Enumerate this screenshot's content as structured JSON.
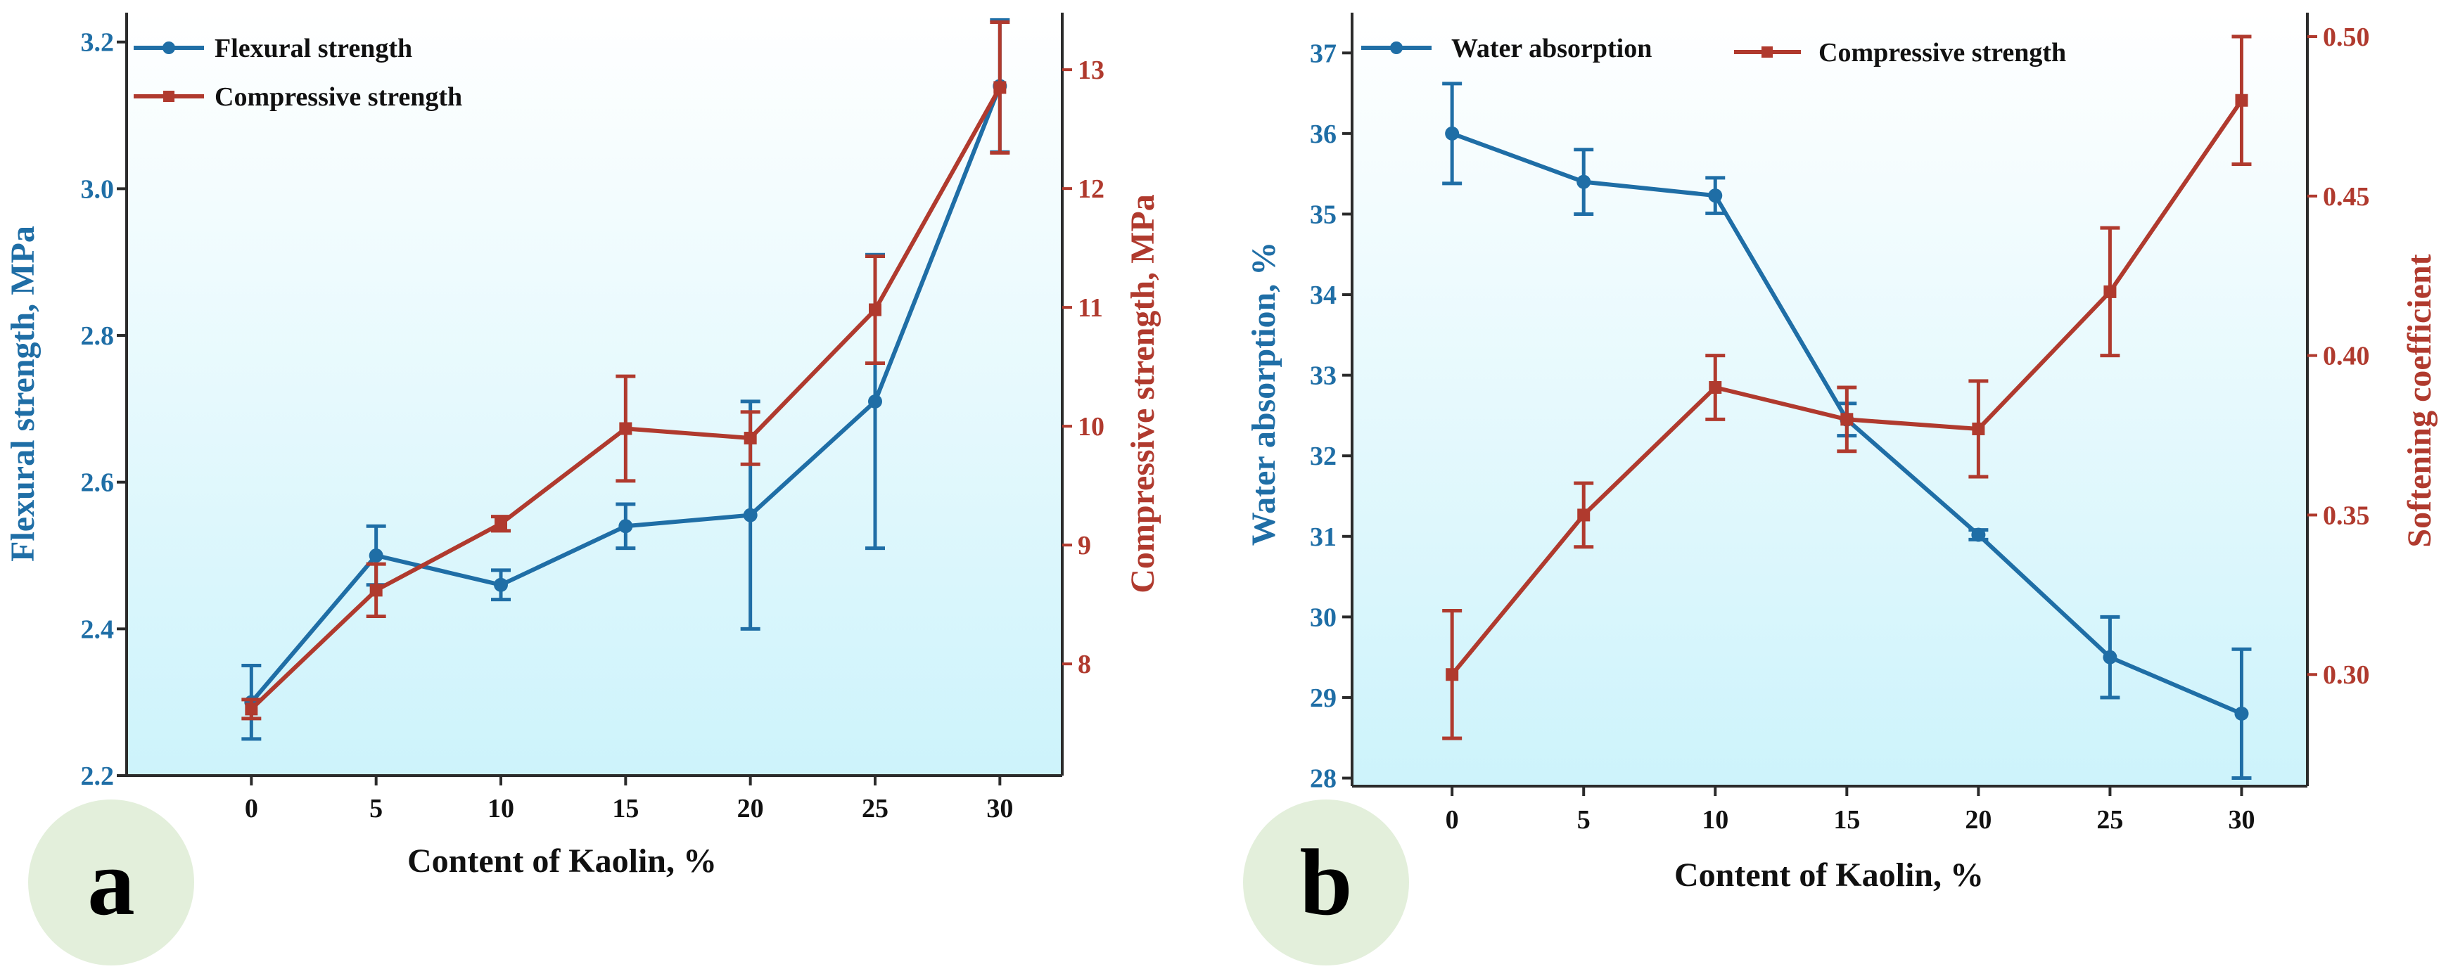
{
  "colors": {
    "blue": "#1f6ea6",
    "red": "#b03a2e",
    "panel_bg_top": "#ffffff",
    "panel_bg_bottom": "#cdf3fb",
    "badge": "#e3efdb",
    "axis": "#2b2b2b"
  },
  "chart_data": [
    {
      "type": "line",
      "panel_label": "a",
      "xlabel": "Content of Kaolin, %",
      "x": [
        0,
        5,
        10,
        15,
        20,
        25,
        30
      ],
      "x_ticks": [
        0,
        5,
        10,
        15,
        20,
        25,
        30
      ],
      "xlim": [
        -5,
        32.5
      ],
      "left_axis": {
        "label": "Flexural strength, MPa",
        "lim": [
          2.2,
          3.24
        ],
        "ticks": [
          2.2,
          2.4,
          2.6,
          2.8,
          3.0,
          3.2
        ],
        "tick_labels": [
          "2.2",
          "2.4",
          "2.6",
          "2.8",
          "3.0",
          "3.2"
        ]
      },
      "right_axis": {
        "label": "Compressive strength, MPa",
        "lim": [
          7.06,
          13.48
        ],
        "ticks": [
          8,
          9,
          10,
          11,
          12,
          13
        ],
        "tick_labels": [
          "8",
          "9",
          "10",
          "11",
          "12",
          "13"
        ]
      },
      "series": [
        {
          "name": "Flexural strength",
          "axis": "left",
          "marker": "circle",
          "color": "#1f6ea6",
          "values": [
            2.3,
            2.5,
            2.46,
            2.54,
            2.555,
            2.71,
            3.14
          ],
          "errors": [
            0.05,
            0.04,
            0.02,
            0.03,
            0.155,
            0.2,
            0.09
          ]
        },
        {
          "name": "Compressive strength",
          "axis": "right",
          "marker": "square",
          "color": "#b03a2e",
          "values": [
            7.62,
            8.62,
            9.18,
            9.98,
            9.9,
            10.98,
            12.85
          ],
          "errors": [
            0.08,
            0.22,
            0.06,
            0.44,
            0.22,
            0.45,
            0.55
          ]
        }
      ],
      "legend": [
        "Flexural strength",
        "Compressive strength"
      ]
    },
    {
      "type": "line",
      "panel_label": "b",
      "xlabel": "Content of Kaolin, %",
      "x": [
        0,
        5,
        10,
        15,
        20,
        25,
        30
      ],
      "x_ticks": [
        0,
        5,
        10,
        15,
        20,
        25,
        30
      ],
      "xlim": [
        -3.8,
        32.5
      ],
      "left_axis": {
        "label": "Water absorption, %",
        "lim": [
          27.9,
          37.5
        ],
        "ticks": [
          28,
          29,
          30,
          31,
          32,
          33,
          34,
          35,
          36,
          37
        ],
        "tick_labels": [
          "28",
          "29",
          "30",
          "31",
          "32",
          "33",
          "34",
          "35",
          "36",
          "37"
        ]
      },
      "right_axis": {
        "label": "Softening coefficient",
        "lim": [
          0.265,
          0.5075
        ],
        "ticks": [
          0.3,
          0.35,
          0.4,
          0.45,
          0.5
        ],
        "tick_labels": [
          "0.30",
          "0.35",
          "0.40",
          "0.45",
          "0.50"
        ]
      },
      "series": [
        {
          "name": "Water absorption",
          "axis": "left",
          "marker": "circle",
          "color": "#1f6ea6",
          "values": [
            36.0,
            35.4,
            35.23,
            32.45,
            31.02,
            29.5,
            28.8
          ],
          "errors": [
            0.62,
            0.4,
            0.22,
            0.2,
            0.06,
            0.5,
            0.8
          ]
        },
        {
          "name": "Compressive strength",
          "axis": "right",
          "marker": "square",
          "color": "#b03a2e",
          "values": [
            0.3,
            0.35,
            0.39,
            0.38,
            0.377,
            0.42,
            0.48
          ],
          "errors": [
            0.02,
            0.01,
            0.01,
            0.01,
            0.015,
            0.02,
            0.02
          ]
        }
      ],
      "legend": [
        "Water absorption",
        "Compressive strength"
      ]
    }
  ]
}
